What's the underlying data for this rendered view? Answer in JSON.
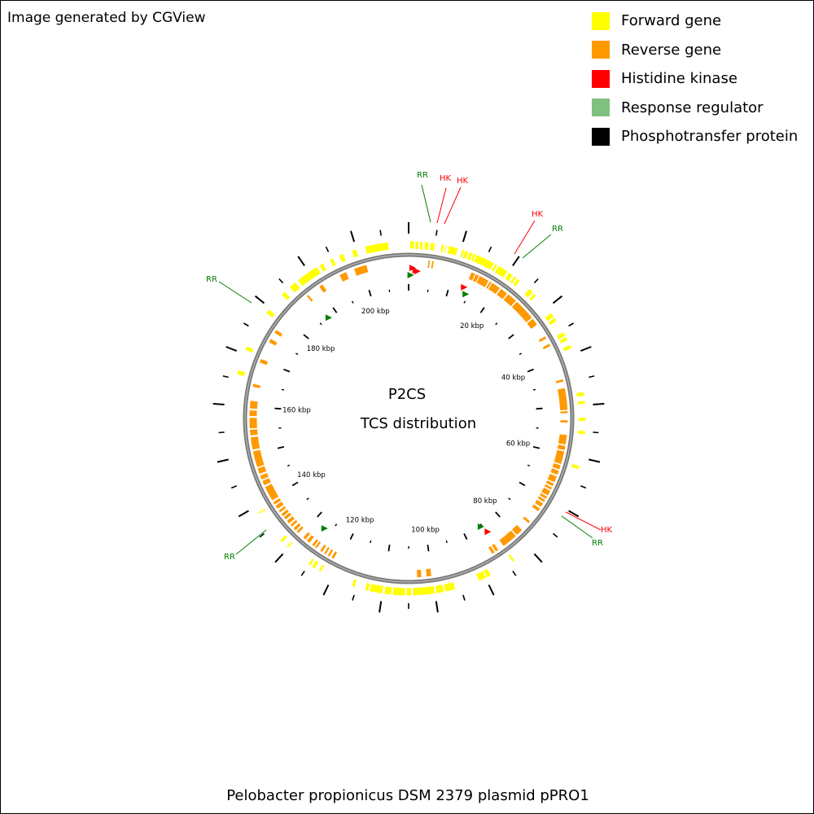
{
  "credit": "Image generated by CGView",
  "caption": "Pelobacter propionicus DSM 2379 plasmid pPRO1",
  "center_title": "P2CS",
  "center_subtitle": "TCS distribution",
  "legend": [
    {
      "label": "Forward gene",
      "color": "#ffff00"
    },
    {
      "label": "Reverse gene",
      "color": "#ff9900"
    },
    {
      "label": "Histidine kinase",
      "color": "#ff0000"
    },
    {
      "label": "Response regulator",
      "color": "#80c080"
    },
    {
      "label": "Phosphotransfer protein",
      "color": "#000000"
    }
  ],
  "ruler_labels": [
    "20 kbp",
    "40 kbp",
    "60 kbp",
    "80 kbp",
    "100 kbp",
    "120 kbp",
    "140 kbp",
    "160 kbp",
    "180 kbp",
    "200 kbp"
  ],
  "feature_labels": [
    {
      "text": "RR",
      "color": "#008000",
      "kbp": 206.5
    },
    {
      "text": "HK",
      "color": "#ff0000",
      "kbp": 0.8
    },
    {
      "text": "HK",
      "color": "#ff0000",
      "kbp": 1.6
    },
    {
      "text": "HK",
      "color": "#ff0000",
      "kbp": 13.4
    },
    {
      "text": "RR",
      "color": "#008000",
      "kbp": 14.3
    },
    {
      "text": "HK",
      "color": "#ff0000",
      "kbp": 84.6
    },
    {
      "text": "RR",
      "color": "#008000",
      "kbp": 85.3
    },
    {
      "text": "RR",
      "color": "#008000",
      "kbp": 126.8
    },
    {
      "text": "RR",
      "color": "#008000",
      "kbp": 187.6
    }
  ]
}
